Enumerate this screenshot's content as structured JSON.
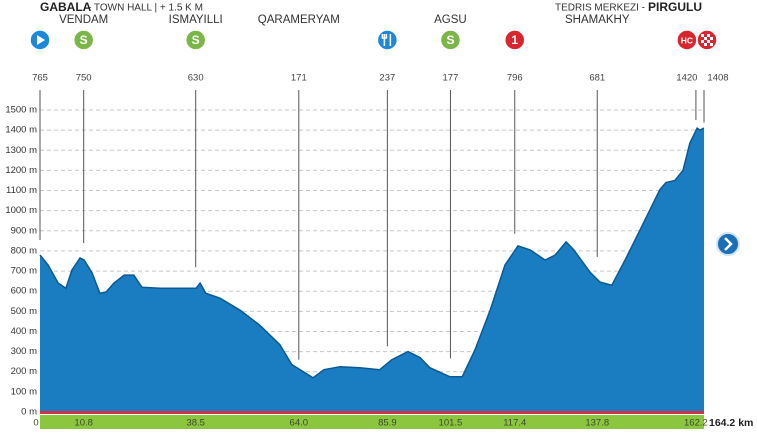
{
  "chart_data": {
    "type": "area",
    "start_label": {
      "name": "GABALA",
      "detail": "- TOWN HALL  | + 1.5 K M"
    },
    "finish_label": {
      "detail": "TEDRIS MERKEZI -",
      "name": "PIRGULU"
    },
    "points": [
      {
        "km": 0,
        "altitude": 765,
        "marker_color": "#1e88d8"
      },
      {
        "km": 10.8,
        "altitude": 750,
        "name": "VENDAM",
        "badge": "S",
        "marker_color": "#7ab648"
      },
      {
        "km": 38.5,
        "altitude": 630,
        "name": "ISMAYILLI",
        "badge": "S",
        "marker_color": "#7ab648"
      },
      {
        "km": 64,
        "altitude": 171,
        "name": "QARAMERYAM"
      },
      {
        "km": 85.9,
        "altitude": 237,
        "marker_color": "#1e88d8"
      },
      {
        "km": 101.5,
        "altitude": 177,
        "name": "AGSU",
        "badge": "S",
        "marker_color": "#7ab648"
      },
      {
        "km": 117.4,
        "altitude": 796,
        "badge": "1",
        "marker_color": "#d9262e"
      },
      {
        "km": 137.8,
        "altitude": 681,
        "name": "SHAMAKHY"
      },
      {
        "km": 162.2,
        "altitude": 1420,
        "badge": "HC",
        "marker_color": "#d9262e"
      },
      {
        "km": 164.2,
        "altitude": 1408,
        "marker_color": "#d9262e"
      }
    ],
    "x": [
      0,
      2,
      4.5,
      6.4,
      7.9,
      9.9,
      10.9,
      12.9,
      14.8,
      16.3,
      18.3,
      20.8,
      23.2,
      25.2,
      29.7,
      38.6,
      39.6,
      41,
      44.5,
      49.5,
      54.4,
      59.3,
      62.3,
      64.3,
      67.5,
      70.2,
      74.2,
      79.1,
      84,
      87,
      91,
      94,
      96.4,
      101.4,
      104.4,
      107.6,
      111.3,
      115,
      118.2,
      121.2,
      124.9,
      127.4,
      130.1,
      132,
      136,
      138.5,
      141.4,
      144.7,
      148.4,
      153.3,
      154.8,
      157,
      159,
      160.7,
      162.5,
      163.2,
      164.2
    ],
    "series": [
      {
        "color": "#1a7cc1",
        "values": [
          780,
          730,
          640,
          615,
          705,
          765,
          755,
          690,
          590,
          595,
          640,
          680,
          680,
          620,
          615,
          615,
          640,
          590,
          565,
          505,
          430,
          335,
          235,
          210,
          170,
          210,
          225,
          220,
          210,
          260,
          300,
          270,
          220,
          175,
          175,
          310,
          505,
          730,
          825,
          805,
          755,
          780,
          845,
          805,
          695,
          645,
          630,
          755,
          905,
          1105,
          1140,
          1150,
          1200,
          1335,
          1410,
          1400,
          1410
        ]
      }
    ],
    "xlim": [
      0,
      164.2
    ],
    "ylim": [
      0,
      1500
    ],
    "xticks": [
      0,
      10.8,
      38.5,
      {
        "value": 64,
        "label": "64.0"
      },
      85.9,
      101.5,
      117.4,
      137.8,
      162.2,
      {
        "value": 164.2,
        "label": "164.2 km"
      }
    ],
    "yticks": [
      {
        "value": 0,
        "label": "0 m"
      },
      {
        "value": 100,
        "label": "100 m"
      },
      {
        "value": 200,
        "label": "200 m"
      },
      {
        "value": 300,
        "label": "300 m"
      },
      {
        "value": 400,
        "label": "400 m"
      },
      {
        "value": 500,
        "label": "500 m"
      },
      {
        "value": 600,
        "label": "600 m"
      },
      {
        "value": 700,
        "label": "700 m"
      },
      {
        "value": 800,
        "label": "800 m"
      },
      {
        "value": 900,
        "label": "900 m"
      },
      {
        "value": 1000,
        "label": "1000 m"
      },
      {
        "value": 1100,
        "label": "1100 m"
      },
      {
        "value": 1200,
        "label": "1200 m"
      },
      {
        "value": 1300,
        "label": "1300 m"
      },
      {
        "value": 1400,
        "label": "1400 m"
      },
      {
        "value": 1500,
        "label": "1500 m"
      }
    ],
    "grid": true
  }
}
